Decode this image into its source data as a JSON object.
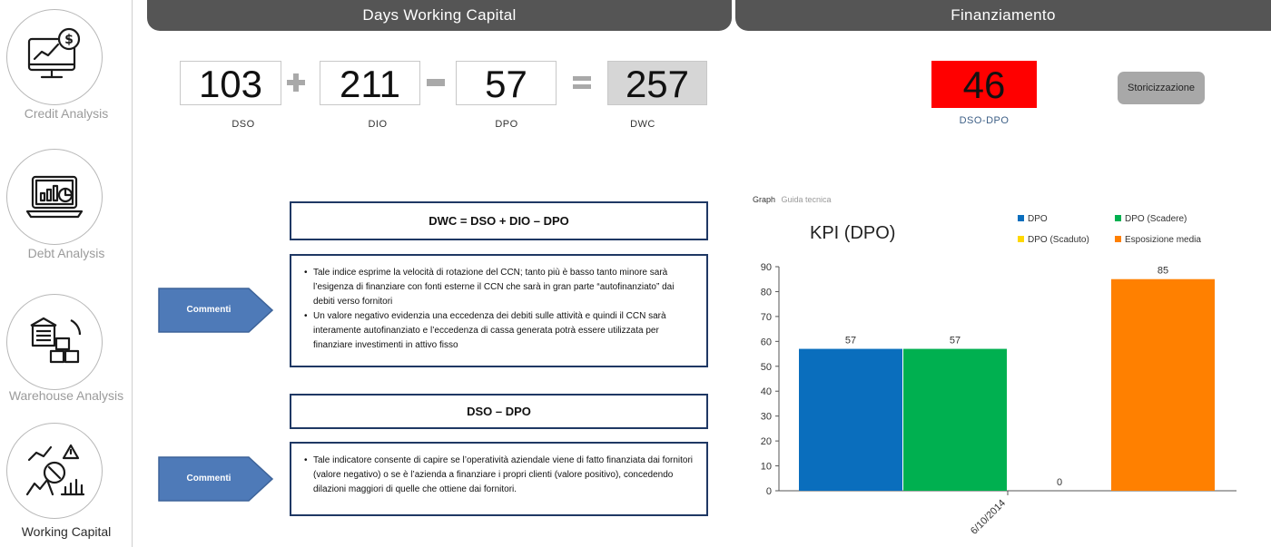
{
  "sidebar": {
    "items": [
      {
        "label": "Credit Analysis",
        "icon": "monitor-dollar-icon",
        "active": false
      },
      {
        "label": "Debt Analysis",
        "icon": "laptop-chart-icon",
        "active": false
      },
      {
        "label": "Warehouse Analysis",
        "icon": "warehouse-boxes-icon",
        "active": false
      },
      {
        "label": "Working Capital",
        "icon": "working-capital-icon",
        "active": true
      }
    ]
  },
  "dwc": {
    "header": "Days Working Capital",
    "dso": {
      "value": "103",
      "label": "DSO"
    },
    "dio": {
      "value": "211",
      "label": "DIO"
    },
    "dpo": {
      "value": "57",
      "label": "DPO"
    },
    "result": {
      "value": "257",
      "label": "DWC"
    }
  },
  "finanziamento": {
    "header": "Finanziamento",
    "value": "46",
    "label": "DSO-DPO",
    "color": "#ff0000",
    "button_label": "Storicizzazione"
  },
  "panels": [
    {
      "title": "DWC = DSO + DIO – DPO",
      "arrow_label": "Commenti",
      "bullets": [
        "Tale indice esprime la velocità di rotazione del CCN; tanto più è basso tanto minore sarà l’esigenza di finanziare con fonti esterne il CCN che sarà in gran parte “autofinanziato” dai debiti verso fornitori",
        "Un valore negativo evidenzia una eccedenza dei debiti sulle attività e quindi il CCN sarà interamente autofinanziato e l’eccedenza di cassa generata potrà essere utilizzata per finanziare investimenti in attivo fisso"
      ]
    },
    {
      "title": "DSO – DPO",
      "arrow_label": "Commenti",
      "bullets": [
        "Tale indicatore consente di capire se l’operatività aziendale viene di fatto finanziata dai fornitori (valore negativo) o se è l’azienda a finanziare i propri clienti (valore positivo), concedendo dilazioni maggiori di quelle che ottiene dai fornitori."
      ]
    }
  ],
  "chart_tabs": [
    {
      "label": "Graph",
      "active": true
    },
    {
      "label": "Guida tecnica",
      "active": false
    }
  ],
  "chart_data": {
    "type": "bar",
    "title": "KPI (DPO)",
    "categories": [
      "6/10/2014"
    ],
    "series": [
      {
        "name": "DPO",
        "color": "#0a6ebd",
        "values": [
          57
        ]
      },
      {
        "name": "DPO (Scadere)",
        "color": "#00b050",
        "values": [
          57
        ]
      },
      {
        "name": "DPO (Scaduto)",
        "color": "#ffd800",
        "values": [
          0
        ]
      },
      {
        "name": "Esposizione media",
        "color": "#ff8000",
        "values": [
          85
        ]
      }
    ],
    "ylim": [
      0,
      90
    ],
    "yticks": [
      0,
      10,
      20,
      30,
      40,
      50,
      60,
      70,
      80,
      90
    ],
    "legend": "top-right",
    "grid": false
  }
}
